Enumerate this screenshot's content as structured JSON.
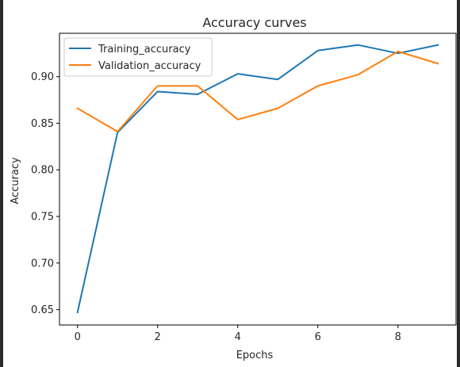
{
  "chart_data": {
    "type": "line",
    "title": "Accuracy curves",
    "xlabel": "Epochs",
    "ylabel": "Accuracy",
    "x": [
      0,
      1,
      2,
      3,
      4,
      5,
      6,
      7,
      8,
      9
    ],
    "series": [
      {
        "name": "Training_accuracy",
        "color": "#1f77b4",
        "values": [
          0.647,
          0.84,
          0.884,
          0.881,
          0.903,
          0.897,
          0.928,
          0.934,
          0.925,
          0.934
        ]
      },
      {
        "name": "Validation_accuracy",
        "color": "#ff7f0e",
        "values": [
          0.866,
          0.841,
          0.89,
          0.89,
          0.854,
          0.866,
          0.89,
          0.902,
          0.927,
          0.914
        ]
      }
    ],
    "xlim": [
      -0.45,
      9.45
    ],
    "ylim": [
      0.6335,
      0.9465
    ],
    "xticks": [
      0,
      2,
      4,
      6,
      8
    ],
    "xtick_labels": [
      "0",
      "2",
      "4",
      "6",
      "8"
    ],
    "yticks": [
      0.65,
      0.7,
      0.75,
      0.8,
      0.85,
      0.9
    ],
    "ytick_labels": [
      "0.65",
      "0.70",
      "0.75",
      "0.80",
      "0.85",
      "0.90"
    ],
    "grid": false,
    "legend_position": "top-left"
  }
}
